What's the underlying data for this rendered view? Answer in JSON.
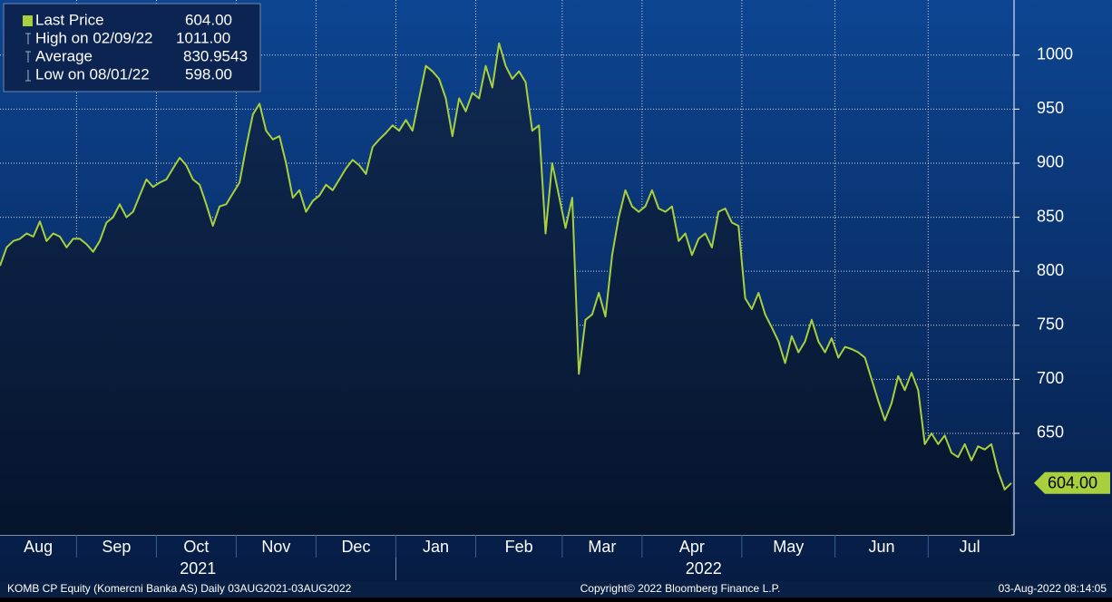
{
  "chart_data": {
    "type": "line",
    "legend": [
      {
        "label": "Last Price",
        "value": "604.00"
      },
      {
        "label": "High on 02/09/22",
        "value": "1011.00"
      },
      {
        "label": "Average",
        "value": "830.9543"
      },
      {
        "label": "Low on 08/01/22",
        "value": "598.00"
      }
    ],
    "color": "#a8d03c",
    "months": [
      {
        "label": "Aug",
        "values": [
          805,
          822,
          828,
          830,
          835,
          832,
          846,
          828,
          835,
          832,
          822,
          830
        ]
      },
      {
        "label": "Sep",
        "values": [
          830,
          825,
          818,
          828,
          845,
          850,
          862,
          850,
          855,
          870,
          885,
          878
        ]
      },
      {
        "label": "Oct",
        "values": [
          882,
          885,
          895,
          905,
          898,
          885,
          880,
          862,
          842,
          860,
          862,
          872
        ]
      },
      {
        "label": "Nov",
        "values": [
          882,
          915,
          945,
          955,
          930,
          922,
          925,
          900,
          868,
          875,
          855,
          865
        ]
      },
      {
        "label": "Dec",
        "values": [
          870,
          880,
          875,
          885,
          895,
          903,
          898,
          890,
          915,
          922,
          928,
          935
        ]
      },
      {
        "label": "Jan",
        "values": [
          930,
          940,
          930,
          960,
          990,
          985,
          978,
          960,
          925,
          960,
          948,
          965
        ]
      },
      {
        "label": "Feb",
        "values": [
          960,
          990,
          970,
          1011,
          990,
          978,
          985,
          975,
          930,
          935,
          835,
          900,
          870
        ]
      },
      {
        "label": "Mar",
        "values": [
          840,
          868,
          705,
          755,
          760,
          780,
          758,
          815,
          850,
          875,
          860,
          855
        ]
      },
      {
        "label": "Apr",
        "values": [
          860,
          875,
          858,
          855,
          860,
          828,
          835,
          815,
          830,
          835,
          822,
          855,
          858,
          845,
          842
        ]
      },
      {
        "label": "May",
        "values": [
          775,
          765,
          780,
          760,
          748,
          735,
          715,
          740,
          725,
          735,
          755,
          735,
          725,
          738
        ]
      },
      {
        "label": "Jun",
        "values": [
          720,
          730,
          728,
          725,
          720,
          700,
          680,
          662,
          678,
          703,
          690,
          706,
          690,
          640
        ]
      },
      {
        "label": "Jul",
        "values": [
          650,
          640,
          648,
          632,
          628,
          640,
          625,
          638,
          635,
          640,
          615,
          598,
          604
        ]
      }
    ],
    "years": [
      {
        "label": "2021",
        "months": 5
      },
      {
        "label": "2022",
        "months": 7
      }
    ],
    "last_label": "604.00",
    "ylim": [
      556,
      1051
    ],
    "yticks": [
      650,
      700,
      750,
      800,
      850,
      900,
      950,
      1000
    ],
    "grid": true,
    "footer": {
      "left": "KOMB CP Equity (Komercni Banka AS)  Daily 03AUG2021-03AUG2022",
      "center": "Copyright© 2022 Bloomberg Finance L.P.",
      "right": "03-Aug-2022 08:14:05"
    }
  }
}
